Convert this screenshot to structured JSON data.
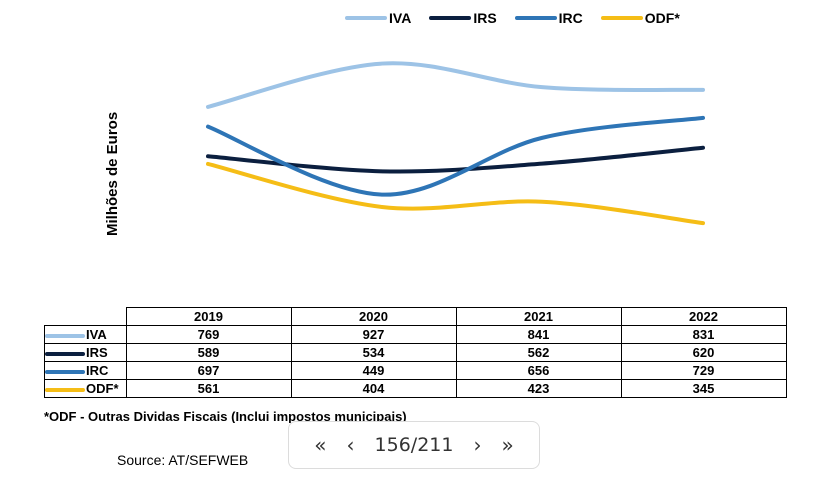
{
  "chart_data": {
    "type": "line",
    "x": [
      "2019",
      "2020",
      "2021",
      "2022"
    ],
    "ylabel": "Milhões de Euros",
    "legend_position": "top",
    "grid": false,
    "series": [
      {
        "name": "IVA",
        "color": "#9dc3e6",
        "values": [
          769,
          927,
          841,
          831
        ]
      },
      {
        "name": "IRS",
        "color": "#0b1f3f",
        "values": [
          589,
          534,
          562,
          620
        ]
      },
      {
        "name": "IRC",
        "color": "#2e75b6",
        "values": [
          697,
          449,
          656,
          729
        ]
      },
      {
        "name": "ODF*",
        "color": "#f5bd16",
        "values": [
          561,
          404,
          423,
          345
        ]
      }
    ]
  },
  "footnote": "*ODF - Outras Dividas Fiscais (Inclui impostos municipais)",
  "source": "Source: AT/SEFWEB",
  "pager": {
    "first": "«",
    "prev": "‹",
    "counter": "156/211",
    "next": "›",
    "last": "»"
  }
}
